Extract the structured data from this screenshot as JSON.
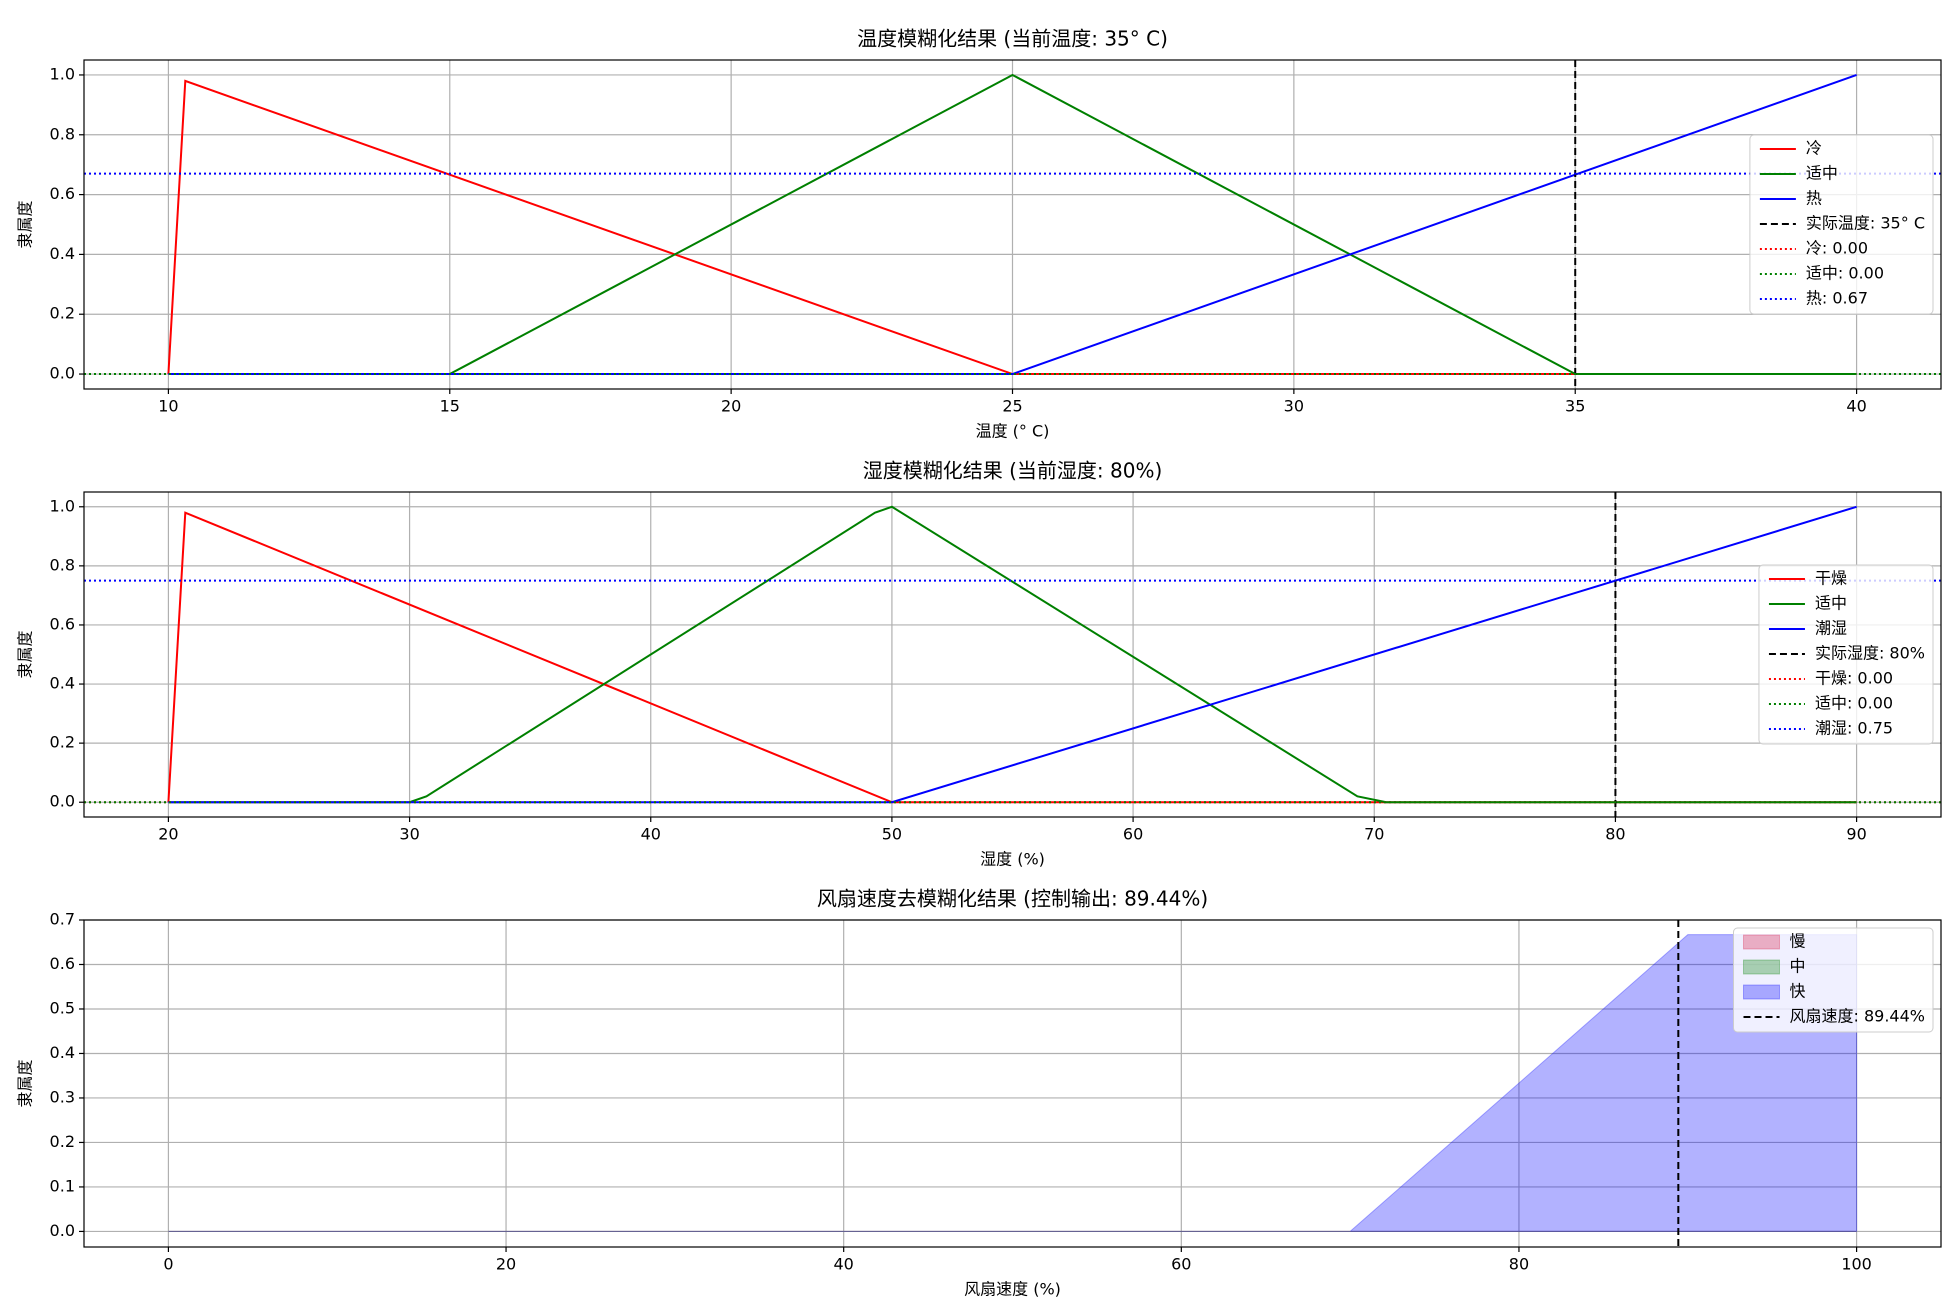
{
  "chart_data": [
    {
      "type": "line",
      "title": "温度模糊化结果 (当前温度: 35° C)",
      "xlabel": "温度 (° C)",
      "ylabel": "隶属度",
      "xlim": [
        8.5,
        41.5
      ],
      "ylim": [
        -0.05,
        1.05
      ],
      "xticks": [
        10,
        15,
        20,
        25,
        30,
        35,
        40
      ],
      "yticks": [
        {
          "value": 0,
          "label": "0.0"
        },
        0.2,
        0.4,
        0.6,
        0.8,
        {
          "value": 1,
          "label": "1.0"
        }
      ],
      "grid": true,
      "legend": "center right",
      "series": [
        {
          "name": "冷",
          "color": "red",
          "x": [
            10,
            10.3,
            25,
            40
          ],
          "values": [
            0,
            0.98,
            0,
            0
          ]
        },
        {
          "name": "适中",
          "color": "green",
          "x": [
            10,
            15,
            15.2,
            25,
            35,
            40
          ],
          "values": [
            0,
            0,
            0.02,
            1,
            0,
            0
          ]
        },
        {
          "name": "热",
          "color": "blue",
          "x": [
            10,
            25,
            40
          ],
          "values": [
            0,
            0,
            1
          ]
        }
      ],
      "vlines": [
        {
          "name": "实际温度: 35° C",
          "value": 35,
          "color": "black",
          "dash": "dashed"
        }
      ],
      "hlines": [
        {
          "name": "冷: 0.00",
          "value": 0,
          "color": "red",
          "dash": "dotted"
        },
        {
          "name": "适中: 0.00",
          "value": 0,
          "color": "green",
          "dash": "dotted"
        },
        {
          "name": "热: 0.67",
          "value": 0.67,
          "color": "blue",
          "dash": "dotted"
        }
      ]
    },
    {
      "type": "line",
      "title": "湿度模糊化结果 (当前湿度: 80%)",
      "xlabel": "湿度 (%)",
      "ylabel": "隶属度",
      "xlim": [
        16.5,
        93.5
      ],
      "ylim": [
        -0.05,
        1.05
      ],
      "xticks": [
        20,
        30,
        40,
        50,
        60,
        70,
        80,
        90
      ],
      "yticks": [
        {
          "value": 0,
          "label": "0.0"
        },
        0.2,
        0.4,
        0.6,
        0.8,
        {
          "value": 1,
          "label": "1.0"
        }
      ],
      "grid": true,
      "legend": "center right",
      "series": [
        {
          "name": "干燥",
          "color": "red",
          "x": [
            20,
            20.7,
            50,
            90
          ],
          "values": [
            0,
            0.98,
            0,
            0
          ]
        },
        {
          "name": "适中",
          "color": "green",
          "x": [
            20,
            30,
            30.7,
            49.3,
            50,
            69.3,
            70.5,
            90
          ],
          "values": [
            0,
            0,
            0.02,
            0.98,
            1,
            0.02,
            0,
            0
          ]
        },
        {
          "name": "潮湿",
          "color": "blue",
          "x": [
            20,
            50,
            90
          ],
          "values": [
            0,
            0,
            1
          ]
        }
      ],
      "vlines": [
        {
          "name": "实际湿度: 80%",
          "value": 80,
          "color": "black",
          "dash": "dashed"
        }
      ],
      "hlines": [
        {
          "name": "干燥: 0.00",
          "value": 0,
          "color": "red",
          "dash": "dotted"
        },
        {
          "name": "适中: 0.00",
          "value": 0,
          "color": "green",
          "dash": "dotted"
        },
        {
          "name": "潮湿: 0.75",
          "value": 0.75,
          "color": "blue",
          "dash": "dotted"
        }
      ]
    },
    {
      "type": "area",
      "title": "风扇速度去模糊化结果 (控制输出: 89.44%)",
      "xlabel": "风扇速度 (%)",
      "ylabel": "隶属度",
      "xlim": [
        -5,
        105
      ],
      "ylim": [
        -0.035,
        0.7
      ],
      "xticks": [
        0,
        20,
        40,
        60,
        80,
        100
      ],
      "yticks": [
        {
          "value": 0,
          "label": "0.0"
        },
        0.1,
        0.2,
        0.3,
        0.4,
        0.5,
        0.6,
        0.7
      ],
      "grid": true,
      "legend": "upper right",
      "series": [
        {
          "name": "慢",
          "color": "#dc143c",
          "x": [
            0,
            100
          ],
          "values": [
            0,
            0
          ]
        },
        {
          "name": "中",
          "color": "green",
          "x": [
            0,
            100
          ],
          "values": [
            0,
            0
          ]
        },
        {
          "name": "快",
          "color": "blue",
          "x": [
            0,
            70,
            90,
            100
          ],
          "values": [
            0,
            0,
            0.667,
            0.667
          ]
        }
      ],
      "vlines": [
        {
          "name": "风扇速度: 89.44%",
          "value": 89.44,
          "color": "black",
          "dash": "dashed"
        }
      ],
      "hlines": []
    }
  ]
}
